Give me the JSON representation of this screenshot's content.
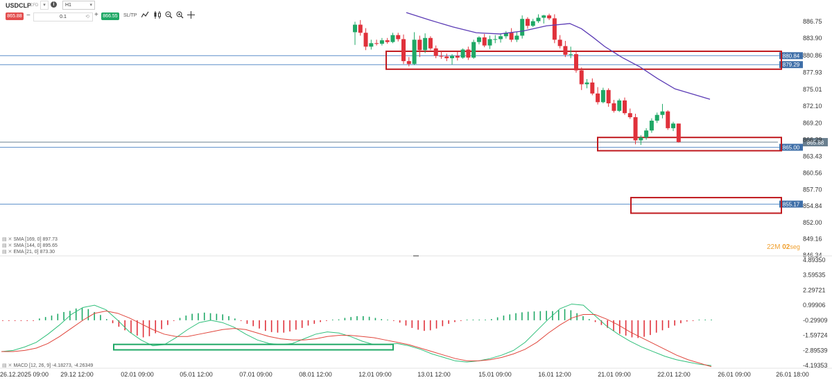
{
  "toolbar": {
    "symbol": "USDCLP",
    "symbol_suffix": "CFD",
    "timeframe": "H1",
    "sell_price": "865.88",
    "quantity": "0.1",
    "buy_price": "866.55",
    "sltp_label": "SL/TP",
    "icons": [
      "indicator-icon",
      "candlestick-icon",
      "zoom-out-icon",
      "zoom-in-icon",
      "crosshair-icon"
    ]
  },
  "price_axis": {
    "ticks": [
      "886.75",
      "883.90",
      "880.86",
      "877.93",
      "875.01",
      "872.10",
      "869.20",
      "866.29",
      "863.43",
      "860.56",
      "857.70",
      "854.84",
      "852.00",
      "849.16",
      "846.34"
    ],
    "current_price": "865.88"
  },
  "levels": [
    {
      "value": "880.84",
      "price": 880.84
    },
    {
      "value": "879.29",
      "price": 879.29
    },
    {
      "value": "865.00",
      "price": 865.0
    },
    {
      "value": "855.17",
      "price": 855.17
    }
  ],
  "time_axis": [
    "26.12.2025 09:00",
    "29.12 12:00",
    "02.01 09:00",
    "05.01 12:00",
    "07.01 09:00",
    "08.01 12:00",
    "12.01 09:00",
    "13.01 12:00",
    "15.01 09:00",
    "16.01 12:00",
    "21.01 09:00",
    "22.01 12:00",
    "26.01 09:00",
    "26.01 18:00"
  ],
  "indicators": [
    {
      "label": "SMA [169, 0] 897.73"
    },
    {
      "label": "SMA [144, 0] 895.65"
    },
    {
      "label": "EMA [21, 0] 873.30"
    }
  ],
  "timer": {
    "minutes": "22M",
    "seconds": "02",
    "seconds_unit": "seg"
  },
  "macd": {
    "label": "MACD [12, 26, 9] -4.18273, -4.26349",
    "ticks": [
      "4.89350",
      "3.59535",
      "2.29721",
      "0.99906",
      "-0.29909",
      "-1.59724",
      "-2.89539",
      "-4.19353"
    ]
  },
  "colors": {
    "up": "#1fa866",
    "down": "#e0313b",
    "ema": "#5b3bb5",
    "level": "#5b8ec9",
    "zone": "#c0191e",
    "macd_zone": "#1fa866"
  },
  "chart_data": {
    "type": "candlestick",
    "timeframe": "H1",
    "ylim": [
      846.34,
      887.8
    ],
    "candles": [
      {
        "o": 884.9,
        "h": 886.7,
        "l": 882.7,
        "c": 886.2
      },
      {
        "o": 886.2,
        "h": 887.0,
        "l": 884.3,
        "c": 884.8
      },
      {
        "o": 884.8,
        "h": 885.6,
        "l": 881.8,
        "c": 882.4
      },
      {
        "o": 882.4,
        "h": 883.6,
        "l": 881.9,
        "c": 883.0
      },
      {
        "o": 883.0,
        "h": 883.6,
        "l": 882.6,
        "c": 882.9
      },
      {
        "o": 882.9,
        "h": 883.9,
        "l": 882.6,
        "c": 883.5
      },
      {
        "o": 883.5,
        "h": 883.9,
        "l": 882.9,
        "c": 883.2
      },
      {
        "o": 883.2,
        "h": 884.8,
        "l": 883.0,
        "c": 884.4
      },
      {
        "o": 884.4,
        "h": 884.8,
        "l": 883.3,
        "c": 883.7
      },
      {
        "o": 883.7,
        "h": 884.5,
        "l": 879.4,
        "c": 879.9
      },
      {
        "o": 879.9,
        "h": 880.6,
        "l": 879.0,
        "c": 879.4
      },
      {
        "o": 879.4,
        "h": 884.9,
        "l": 879.2,
        "c": 883.6
      },
      {
        "o": 883.6,
        "h": 884.3,
        "l": 880.6,
        "c": 881.8
      },
      {
        "o": 881.8,
        "h": 884.7,
        "l": 881.3,
        "c": 883.9
      },
      {
        "o": 883.9,
        "h": 884.2,
        "l": 881.8,
        "c": 882.1
      },
      {
        "o": 882.1,
        "h": 882.6,
        "l": 880.4,
        "c": 880.8
      },
      {
        "o": 880.8,
        "h": 881.6,
        "l": 880.3,
        "c": 880.7
      },
      {
        "o": 880.7,
        "h": 881.2,
        "l": 879.9,
        "c": 880.4
      },
      {
        "o": 880.4,
        "h": 881.1,
        "l": 879.3,
        "c": 880.8
      },
      {
        "o": 880.8,
        "h": 881.5,
        "l": 880.0,
        "c": 880.5
      },
      {
        "o": 880.5,
        "h": 882.1,
        "l": 880.3,
        "c": 881.9
      },
      {
        "o": 881.9,
        "h": 882.4,
        "l": 880.1,
        "c": 880.5
      },
      {
        "o": 880.5,
        "h": 883.6,
        "l": 880.3,
        "c": 883.2
      },
      {
        "o": 883.2,
        "h": 884.2,
        "l": 882.8,
        "c": 884.0
      },
      {
        "o": 884.0,
        "h": 884.6,
        "l": 882.3,
        "c": 882.6
      },
      {
        "o": 882.6,
        "h": 884.3,
        "l": 882.0,
        "c": 883.7
      },
      {
        "o": 883.7,
        "h": 884.4,
        "l": 883.0,
        "c": 883.7
      },
      {
        "o": 883.7,
        "h": 884.6,
        "l": 883.1,
        "c": 884.2
      },
      {
        "o": 884.2,
        "h": 885.1,
        "l": 883.8,
        "c": 884.8
      },
      {
        "o": 884.8,
        "h": 885.6,
        "l": 883.2,
        "c": 883.6
      },
      {
        "o": 883.6,
        "h": 884.9,
        "l": 883.2,
        "c": 884.3
      },
      {
        "o": 884.3,
        "h": 887.8,
        "l": 883.8,
        "c": 887.2
      },
      {
        "o": 887.2,
        "h": 887.5,
        "l": 885.5,
        "c": 886.0
      },
      {
        "o": 886.0,
        "h": 887.2,
        "l": 885.8,
        "c": 886.8
      },
      {
        "o": 886.8,
        "h": 888.0,
        "l": 886.5,
        "c": 887.4
      },
      {
        "o": 887.4,
        "h": 887.9,
        "l": 886.4,
        "c": 887.8
      },
      {
        "o": 887.8,
        "h": 888.1,
        "l": 887.0,
        "c": 887.3
      },
      {
        "o": 887.3,
        "h": 888.0,
        "l": 883.0,
        "c": 883.6
      },
      {
        "o": 883.6,
        "h": 884.4,
        "l": 882.1,
        "c": 882.5
      },
      {
        "o": 882.5,
        "h": 883.4,
        "l": 880.6,
        "c": 881.0
      },
      {
        "o": 881.0,
        "h": 882.4,
        "l": 880.4,
        "c": 881.1
      },
      {
        "o": 881.1,
        "h": 881.6,
        "l": 877.9,
        "c": 878.3
      },
      {
        "o": 878.3,
        "h": 878.8,
        "l": 874.9,
        "c": 875.9
      },
      {
        "o": 875.9,
        "h": 876.8,
        "l": 875.2,
        "c": 876.2
      },
      {
        "o": 876.2,
        "h": 876.9,
        "l": 874.0,
        "c": 874.3
      },
      {
        "o": 874.3,
        "h": 875.4,
        "l": 872.4,
        "c": 872.8
      },
      {
        "o": 872.8,
        "h": 875.3,
        "l": 872.6,
        "c": 874.9
      },
      {
        "o": 874.9,
        "h": 875.2,
        "l": 872.0,
        "c": 872.6
      },
      {
        "o": 872.6,
        "h": 873.2,
        "l": 871.0,
        "c": 871.3
      },
      {
        "o": 871.3,
        "h": 873.4,
        "l": 871.1,
        "c": 873.1
      },
      {
        "o": 873.1,
        "h": 873.6,
        "l": 870.6,
        "c": 870.9
      },
      {
        "o": 870.9,
        "h": 871.7,
        "l": 869.9,
        "c": 870.2
      },
      {
        "o": 870.2,
        "h": 870.8,
        "l": 865.5,
        "c": 866.2
      },
      {
        "o": 866.2,
        "h": 867.1,
        "l": 865.4,
        "c": 866.7
      },
      {
        "o": 866.7,
        "h": 868.3,
        "l": 866.3,
        "c": 867.9
      },
      {
        "o": 867.9,
        "h": 870.0,
        "l": 867.5,
        "c": 869.6
      },
      {
        "o": 869.6,
        "h": 871.0,
        "l": 869.2,
        "c": 870.6
      },
      {
        "o": 870.6,
        "h": 872.5,
        "l": 870.0,
        "c": 871.2
      },
      {
        "o": 871.2,
        "h": 871.4,
        "l": 868.0,
        "c": 868.3
      },
      {
        "o": 868.3,
        "h": 869.4,
        "l": 867.8,
        "c": 869.1
      },
      {
        "o": 869.1,
        "h": 869.1,
        "l": 865.8,
        "c": 865.9
      }
    ],
    "ema21": [
      null,
      null,
      null,
      null,
      null,
      null,
      null,
      null,
      null,
      null,
      null,
      null,
      null,
      null,
      null,
      null,
      null,
      null,
      null,
      null,
      null,
      null,
      null,
      null,
      null,
      null,
      null,
      null,
      null,
      null,
      null,
      null,
      null,
      null,
      null,
      null,
      null,
      null,
      null,
      null,
      null,
      null,
      null,
      null,
      null,
      null,
      null,
      null,
      null,
      null,
      null,
      null,
      null,
      null,
      null,
      null,
      null,
      null,
      null,
      null,
      null
    ],
    "ema21_points": [
      [
        8,
        888.3
      ],
      [
        12,
        887.0
      ],
      [
        16,
        885.8
      ],
      [
        20,
        884.8
      ],
      [
        24,
        884.6
      ],
      [
        28,
        885.1
      ],
      [
        32,
        886.0
      ],
      [
        36,
        886.4
      ],
      [
        38,
        885.5
      ],
      [
        40,
        884.0
      ],
      [
        42,
        882.4
      ],
      [
        45,
        880.5
      ],
      [
        48,
        878.9
      ],
      [
        51,
        876.9
      ],
      [
        54,
        875.1
      ],
      [
        57,
        874.2
      ],
      [
        60,
        873.3
      ]
    ],
    "macd": {
      "ylim": [
        -4.19353,
        4.8935
      ],
      "histogram": [
        -0.05,
        -0.05,
        -0.05,
        -0.05,
        -0.05,
        -0.05,
        0.3,
        0.55,
        0.8,
        1.1,
        1.4,
        1.6,
        2.0,
        2.1,
        1.9,
        1.4,
        0.9,
        0.2,
        -0.5,
        -1.1,
        -1.7,
        -2.2,
        -2.6,
        -2.9,
        -2.7,
        -2.2,
        -1.5,
        -0.8,
        -0.1,
        0.4,
        0.8,
        1.1,
        1.2,
        1.3,
        1.2,
        1.1,
        1.0,
        0.7,
        0.3,
        -0.1,
        -0.6,
        -1.0,
        -1.4,
        -1.8,
        -2.0,
        -2.1,
        -2.1,
        -1.9,
        -1.6,
        -1.3,
        -0.9,
        -0.6,
        -0.3,
        -0.1,
        0.05,
        0.15,
        0.4,
        0.55,
        0.7,
        0.7,
        0.6,
        0.4,
        0.2,
        0.05,
        -0.05,
        -0.4,
        -0.9,
        -1.3,
        -1.6,
        -1.8,
        -1.7,
        -1.4,
        -1.0,
        -0.6,
        -0.3,
        -0.1,
        0.05,
        0.05,
        0.05,
        0.05,
        0.2,
        0.5,
        0.8,
        1.0,
        1.2,
        1.35,
        1.45,
        1.5,
        1.55,
        1.6,
        1.55,
        1.7,
        1.9,
        1.7,
        1.2,
        0.7,
        0.2,
        -0.3,
        -0.8,
        -1.3,
        -1.8,
        -2.3,
        -2.6,
        -2.9,
        -3.0,
        -2.8,
        -2.5,
        -2.1,
        -1.7,
        -1.3,
        -0.9,
        -0.5,
        -0.2,
        -0.05,
        0.1,
        0.1,
        0.1
      ],
      "macd_line": [
        -3.0,
        -2.9,
        -2.6,
        -2.2,
        -1.5,
        -0.7,
        0.2,
        0.8,
        1.0,
        0.6,
        -0.3,
        -1.3,
        -2.0,
        -2.5,
        -2.4,
        -1.8,
        -1.1,
        -0.5,
        -0.3,
        -0.5,
        -0.9,
        -1.5,
        -2.0,
        -2.3,
        -2.4,
        -2.3,
        -1.9,
        -1.5,
        -1.3,
        -1.4,
        -1.7,
        -2.1,
        -2.4,
        -2.4,
        -2.3,
        -2.5,
        -2.8,
        -3.2,
        -3.5,
        -3.8,
        -3.9,
        -3.8,
        -3.6,
        -3.3,
        -2.9,
        -2.2,
        -1.2,
        -0.2,
        0.7,
        1.1,
        1.0,
        0.1,
        -0.8,
        -1.5,
        -2.1,
        -2.6,
        -3.0,
        -3.4,
        -3.7,
        -3.9,
        -4.1,
        -4.2
      ],
      "signal_line": [
        -3.0,
        -3.0,
        -2.9,
        -2.7,
        -2.3,
        -1.7,
        -1.0,
        -0.3,
        0.3,
        0.5,
        0.3,
        -0.1,
        -0.6,
        -1.1,
        -1.5,
        -1.7,
        -1.7,
        -1.5,
        -1.3,
        -1.1,
        -1.0,
        -1.1,
        -1.4,
        -1.7,
        -1.9,
        -2.0,
        -2.0,
        -1.9,
        -1.7,
        -1.6,
        -1.6,
        -1.7,
        -1.8,
        -2.0,
        -2.2,
        -2.4,
        -2.7,
        -3.0,
        -3.3,
        -3.6,
        -3.8,
        -3.8,
        -3.7,
        -3.5,
        -3.2,
        -2.8,
        -2.2,
        -1.4,
        -0.7,
        -0.1,
        0.2,
        0.2,
        -0.2,
        -0.7,
        -1.3,
        -1.8,
        -2.3,
        -2.8,
        -3.3,
        -3.7,
        -4.0,
        -4.3
      ]
    }
  }
}
